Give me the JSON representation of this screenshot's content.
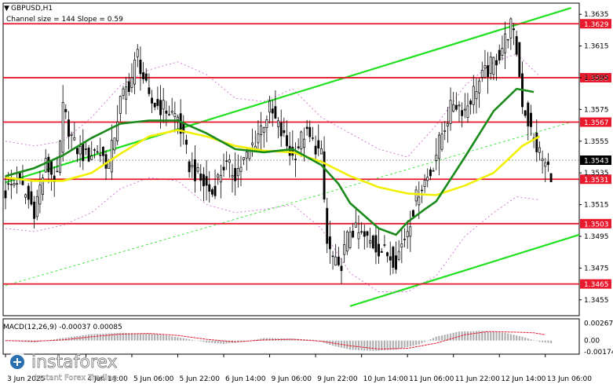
{
  "header": {
    "symbol": "GBPUSD,H1",
    "channel_info": "Channel size = 144 Slope = 0.59"
  },
  "colors": {
    "level": "#e8192c",
    "channel": "#1fe01f",
    "ma_slow": "#f0f000",
    "ma_fast": "#1a8a1a",
    "envelope": "#c860c8",
    "candle": "#000000",
    "macd_hist": "#b0b0b0",
    "macd_signal": "#e8192c"
  },
  "chart_data": {
    "type": "candlestick",
    "symbol": "GBPUSD",
    "timeframe": "H1",
    "ylim": [
      1.3445,
      1.3642
    ],
    "y_ticks": [
      "1.3635",
      "1.3615",
      "1.3595",
      "1.3575",
      "1.3555",
      "1.3535",
      "1.3515",
      "1.3495",
      "1.3475",
      "1.3455"
    ],
    "x_ticks": [
      {
        "label": "3 Jun 2025",
        "bar": 0
      },
      {
        "label": "4 Jun 14:00",
        "bar": 28
      },
      {
        "label": "5 Jun 06:00",
        "bar": 44
      },
      {
        "label": "5 Jun 22:00",
        "bar": 60
      },
      {
        "label": "6 Jun 14:00",
        "bar": 76
      },
      {
        "label": "9 Jun 06:00",
        "bar": 92
      },
      {
        "label": "9 Jun 22:00",
        "bar": 108
      },
      {
        "label": "10 Jun 14:00",
        "bar": 124
      },
      {
        "label": "11 Jun 06:00",
        "bar": 140
      },
      {
        "label": "11 Jun 22:00",
        "bar": 156
      },
      {
        "label": "12 Jun 14:00",
        "bar": 172
      },
      {
        "label": "13 Jun 06:00",
        "bar": 188
      }
    ],
    "levels": [
      {
        "price": 1.3629,
        "label": "1.3629"
      },
      {
        "price": 1.3595,
        "label": "1.3595"
      },
      {
        "price": 1.3567,
        "label": "1.3567"
      },
      {
        "price": 1.3531,
        "label": "1.3531"
      },
      {
        "price": 1.3503,
        "label": "1.3503"
      },
      {
        "price": 1.3465,
        "label": "1.3465"
      }
    ],
    "current_price": {
      "price": 1.3543,
      "label": "1.3543"
    },
    "channel": {
      "upper": [
        {
          "bar": 0,
          "price": 1.3529
        },
        {
          "bar": 197,
          "price": 1.3639
        }
      ],
      "lower": [
        {
          "bar": 120,
          "price": 1.3451
        },
        {
          "bar": 202,
          "price": 1.3496
        }
      ],
      "middle": [
        {
          "bar": 0,
          "price": 1.3464
        },
        {
          "bar": 197,
          "price": 1.3567
        }
      ]
    },
    "close_path": [
      [
        0,
        1.3523
      ],
      [
        4,
        1.3531
      ],
      [
        8,
        1.3518
      ],
      [
        10,
        1.3512
      ],
      [
        14,
        1.354
      ],
      [
        18,
        1.353
      ],
      [
        20,
        1.3575
      ],
      [
        24,
        1.3552
      ],
      [
        28,
        1.3545
      ],
      [
        32,
        1.355
      ],
      [
        36,
        1.354
      ],
      [
        40,
        1.358
      ],
      [
        44,
        1.3595
      ],
      [
        46,
        1.361
      ],
      [
        50,
        1.358
      ],
      [
        56,
        1.3575
      ],
      [
        60,
        1.357
      ],
      [
        64,
        1.354
      ],
      [
        68,
        1.353
      ],
      [
        72,
        1.3522
      ],
      [
        76,
        1.354
      ],
      [
        80,
        1.3535
      ],
      [
        84,
        1.3545
      ],
      [
        88,
        1.356
      ],
      [
        92,
        1.3575
      ],
      [
        96,
        1.356
      ],
      [
        100,
        1.3545
      ],
      [
        104,
        1.356
      ],
      [
        108,
        1.3552
      ],
      [
        110,
        1.3545
      ],
      [
        112,
        1.349
      ],
      [
        116,
        1.3472
      ],
      [
        120,
        1.35
      ],
      [
        124,
        1.3495
      ],
      [
        128,
        1.349
      ],
      [
        132,
        1.3485
      ],
      [
        136,
        1.348
      ],
      [
        140,
        1.35
      ],
      [
        144,
        1.3525
      ],
      [
        148,
        1.3535
      ],
      [
        152,
        1.356
      ],
      [
        156,
        1.358
      ],
      [
        160,
        1.3575
      ],
      [
        164,
        1.359
      ],
      [
        168,
        1.36
      ],
      [
        172,
        1.361
      ],
      [
        176,
        1.3628
      ],
      [
        178,
        1.3612
      ],
      [
        180,
        1.358
      ],
      [
        184,
        1.3555
      ],
      [
        188,
        1.354
      ],
      [
        190,
        1.3535
      ]
    ],
    "ma_slow_path": [
      [
        0,
        1.3532
      ],
      [
        10,
        1.353
      ],
      [
        20,
        1.353
      ],
      [
        30,
        1.3535
      ],
      [
        40,
        1.3547
      ],
      [
        50,
        1.3558
      ],
      [
        60,
        1.3562
      ],
      [
        70,
        1.3558
      ],
      [
        80,
        1.3552
      ],
      [
        90,
        1.3549
      ],
      [
        100,
        1.3548
      ],
      [
        110,
        1.3542
      ],
      [
        120,
        1.3533
      ],
      [
        130,
        1.3526
      ],
      [
        140,
        1.3522
      ],
      [
        150,
        1.3521
      ],
      [
        160,
        1.3527
      ],
      [
        170,
        1.3535
      ],
      [
        180,
        1.3552
      ],
      [
        186,
        1.3558
      ]
    ],
    "ma_fast_path": [
      [
        0,
        1.3533
      ],
      [
        10,
        1.3538
      ],
      [
        20,
        1.3546
      ],
      [
        30,
        1.3557
      ],
      [
        40,
        1.3566
      ],
      [
        50,
        1.3568
      ],
      [
        60,
        1.3568
      ],
      [
        70,
        1.356
      ],
      [
        80,
        1.355
      ],
      [
        90,
        1.3548
      ],
      [
        100,
        1.355
      ],
      [
        110,
        1.354
      ],
      [
        116,
        1.3528
      ],
      [
        120,
        1.3516
      ],
      [
        130,
        1.35
      ],
      [
        136,
        1.3496
      ],
      [
        140,
        1.3504
      ],
      [
        146,
        1.3512
      ],
      [
        150,
        1.3517
      ],
      [
        160,
        1.3545
      ],
      [
        170,
        1.3574
      ],
      [
        178,
        1.3588
      ],
      [
        184,
        1.3586
      ]
    ],
    "envelope_upper_path": [
      [
        0,
        1.3555
      ],
      [
        10,
        1.3552
      ],
      [
        20,
        1.3555
      ],
      [
        30,
        1.357
      ],
      [
        40,
        1.359
      ],
      [
        50,
        1.36
      ],
      [
        60,
        1.3605
      ],
      [
        70,
        1.3597
      ],
      [
        80,
        1.3582
      ],
      [
        90,
        1.358
      ],
      [
        100,
        1.3588
      ],
      [
        110,
        1.357
      ],
      [
        120,
        1.356
      ],
      [
        130,
        1.355
      ],
      [
        140,
        1.3545
      ],
      [
        150,
        1.3565
      ],
      [
        160,
        1.359
      ],
      [
        170,
        1.3605
      ],
      [
        178,
        1.361
      ],
      [
        186,
        1.3596
      ]
    ],
    "envelope_lower_path": [
      [
        0,
        1.35
      ],
      [
        10,
        1.3498
      ],
      [
        20,
        1.3502
      ],
      [
        30,
        1.351
      ],
      [
        40,
        1.3525
      ],
      [
        50,
        1.3532
      ],
      [
        60,
        1.353
      ],
      [
        70,
        1.3515
      ],
      [
        80,
        1.351
      ],
      [
        90,
        1.3512
      ],
      [
        100,
        1.3515
      ],
      [
        110,
        1.35
      ],
      [
        120,
        1.3472
      ],
      [
        130,
        1.346
      ],
      [
        140,
        1.346
      ],
      [
        150,
        1.347
      ],
      [
        160,
        1.3495
      ],
      [
        170,
        1.351
      ],
      [
        178,
        1.352
      ],
      [
        186,
        1.3518
      ]
    ],
    "macd": {
      "label": "MACD(12,26,9) -0.00037 0.00085",
      "ticks": [
        "0.00267",
        "0.00",
        "-0.00174"
      ],
      "ylim": [
        -0.0021,
        0.003
      ],
      "hist_path": [
        [
          0,
          0.0
        ],
        [
          10,
          -0.0003
        ],
        [
          20,
          0.0004
        ],
        [
          30,
          0.001
        ],
        [
          40,
          0.0012
        ],
        [
          50,
          0.0011
        ],
        [
          56,
          0.0008
        ],
        [
          64,
          0.0002
        ],
        [
          70,
          -0.0003
        ],
        [
          76,
          -0.0005
        ],
        [
          84,
          -0.0001
        ],
        [
          90,
          0.0004
        ],
        [
          100,
          0.0003
        ],
        [
          108,
          0.0001
        ],
        [
          114,
          -0.0008
        ],
        [
          120,
          -0.0014
        ],
        [
          128,
          -0.0016
        ],
        [
          136,
          -0.0014
        ],
        [
          144,
          -0.0006
        ],
        [
          150,
          0.0006
        ],
        [
          158,
          0.0014
        ],
        [
          166,
          0.0015
        ],
        [
          174,
          0.0012
        ],
        [
          180,
          0.0006
        ],
        [
          186,
          -0.0002
        ],
        [
          190,
          -0.0004
        ]
      ],
      "signal_path": [
        [
          0,
          0.0
        ],
        [
          10,
          -0.0001
        ],
        [
          20,
          0.0001
        ],
        [
          30,
          0.0006
        ],
        [
          40,
          0.001
        ],
        [
          50,
          0.0011
        ],
        [
          60,
          0.0008
        ],
        [
          70,
          0.0002
        ],
        [
          80,
          -0.0002
        ],
        [
          90,
          0.0001
        ],
        [
          100,
          0.0002
        ],
        [
          110,
          -0.0001
        ],
        [
          120,
          -0.0008
        ],
        [
          130,
          -0.0013
        ],
        [
          140,
          -0.0012
        ],
        [
          150,
          -0.0004
        ],
        [
          160,
          0.0009
        ],
        [
          168,
          0.0014
        ],
        [
          178,
          0.0013
        ],
        [
          184,
          0.0012
        ],
        [
          188,
          0.0009
        ]
      ]
    }
  },
  "brand": {
    "name": "instaforex",
    "tagline": "Instant Forex Trading"
  }
}
